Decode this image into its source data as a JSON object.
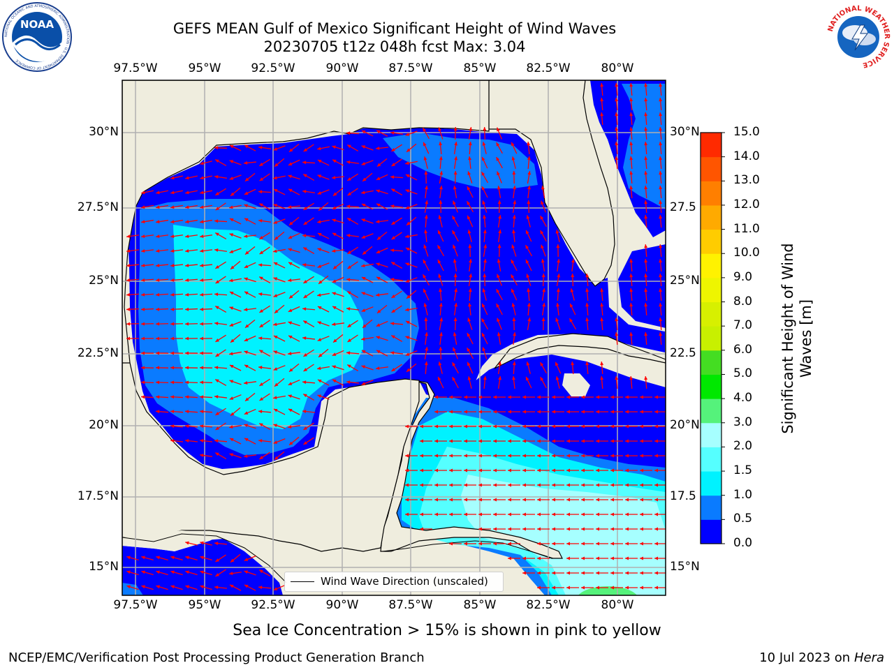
{
  "header": {
    "title_line1": "GEFS MEAN Gulf of Mexico Significant Height of Wind Waves",
    "title_line2": "20230705 t12z 048h fcst   Max: 3.04"
  },
  "logos": {
    "noaa_text": "NOAA",
    "noaa_ring_text": "NATIONAL OCEANIC AND ATMOSPHERIC ADMINISTRATION · U.S. DEPARTMENT OF COMMERCE",
    "nws_ring_text": "NATIONAL WEATHER SERVICE"
  },
  "map": {
    "lon_ticks": [
      "97.5°W",
      "95°W",
      "92.5°W",
      "90°W",
      "87.5°W",
      "85°W",
      "82.5°W",
      "80°W"
    ],
    "lat_ticks_left": [
      "30°N",
      "27.5°N",
      "25°N",
      "22.5°N",
      "20°N",
      "17.5°N",
      "15°N"
    ],
    "lat_ticks_right": [
      "30°N",
      "27.5",
      "25°N",
      "22.5",
      "20°N",
      "17.5",
      "15°N"
    ],
    "legend_label": "Wind Wave Direction (unscaled)",
    "colors": {
      "land": "#efedde",
      "gridline": "#b0b0b0",
      "arrow": "#ff0000",
      "coast": "#000000"
    }
  },
  "colorbar": {
    "title": "Significant Height of Wind Waves [m]",
    "labels": [
      "15.0",
      "14.0",
      "13.0",
      "12.0",
      "11.0",
      "10.0",
      "9.0",
      "8.0",
      "7.0",
      "6.0",
      "5.0",
      "4.0",
      "3.0",
      "2.0",
      "1.5",
      "1.0",
      "0.5",
      "0.0"
    ],
    "bins": [
      {
        "from": 0.0,
        "to": 0.5,
        "color": "#0000ff"
      },
      {
        "from": 0.5,
        "to": 1.0,
        "color": "#0a7bff"
      },
      {
        "from": 1.0,
        "to": 1.5,
        "color": "#00f2ff"
      },
      {
        "from": 1.5,
        "to": 2.0,
        "color": "#55ffff"
      },
      {
        "from": 2.0,
        "to": 3.0,
        "color": "#a6ffff"
      },
      {
        "from": 3.0,
        "to": 4.0,
        "color": "#55f27b"
      },
      {
        "from": 4.0,
        "to": 5.0,
        "color": "#00e800"
      },
      {
        "from": 5.0,
        "to": 6.0,
        "color": "#44dd22"
      },
      {
        "from": 6.0,
        "to": 7.0,
        "color": "#c8f000"
      },
      {
        "from": 7.0,
        "to": 8.0,
        "color": "#d7f000"
      },
      {
        "from": 8.0,
        "to": 9.0,
        "color": "#eef500"
      },
      {
        "from": 9.0,
        "to": 10.0,
        "color": "#fff200"
      },
      {
        "from": 10.0,
        "to": 11.0,
        "color": "#ffcc00"
      },
      {
        "from": 11.0,
        "to": 12.0,
        "color": "#ffaa00"
      },
      {
        "from": 12.0,
        "to": 13.0,
        "color": "#ff7f00"
      },
      {
        "from": 13.0,
        "to": 14.0,
        "color": "#ff5500"
      },
      {
        "from": 14.0,
        "to": 15.0,
        "color": "#ff2a00"
      }
    ]
  },
  "note": "Sea Ice Concentration > 15% is shown in pink to yellow",
  "footer": {
    "left": "NCEP/EMC/Verification Post Processing Product Generation Branch",
    "date": "10 Jul 2023 on ",
    "machine": "Hera"
  }
}
